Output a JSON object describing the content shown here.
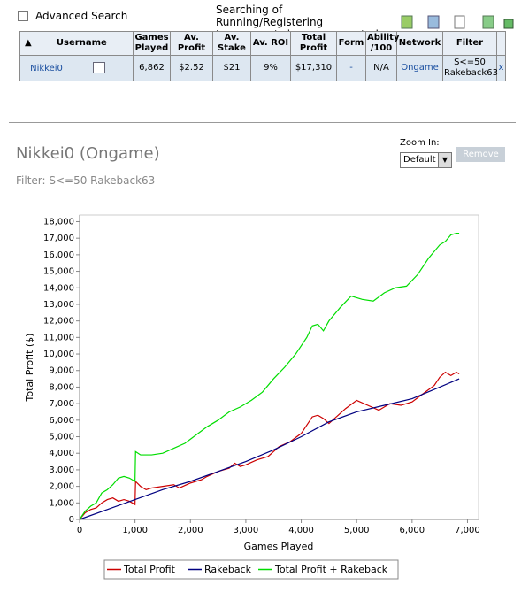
{
  "search": {
    "advanced_search": "Advanced Search",
    "notice": "Searching of Running/Registering tournaments is now supported",
    "notice_help": "(?)"
  },
  "table": {
    "headers": [
      "Username",
      "Games Played",
      "Av. Profit",
      "Av. Stake",
      "Av. ROI",
      "Total Profit",
      "Form",
      "Ability /100",
      "Network",
      "Filter"
    ],
    "rows": [
      [
        "Nikkei0",
        "6,862",
        "$2.52",
        "$21",
        "9%",
        "$17,310",
        "-",
        "N/A",
        "Ongame",
        "S<=50 Rakeback63",
        "x"
      ]
    ]
  },
  "player": {
    "title": "Nikkei0 (Ongame)",
    "filter": "Filter: S<=50 Rakeback63"
  },
  "zoom": {
    "label": "Zoom In:",
    "selected": "Default",
    "remove": "Remove"
  },
  "chart_data": {
    "type": "line",
    "xlabel": "Games Played",
    "ylabel": "Total Profit ($)",
    "xlim": [
      0,
      7200
    ],
    "ylim": [
      0,
      18400
    ],
    "xticks": [
      0,
      {
        "value": 1000,
        "label": "1,000"
      },
      {
        "value": 2000,
        "label": "2,000"
      },
      {
        "value": 3000,
        "label": "3,000"
      },
      {
        "value": 4000,
        "label": "4,000"
      },
      {
        "value": 5000,
        "label": "5,000"
      },
      {
        "value": 6000,
        "label": "6,000"
      },
      {
        "value": 7000,
        "label": "7,000"
      }
    ],
    "yticks": [
      0,
      {
        "value": 1000,
        "label": "1,000"
      },
      {
        "value": 2000,
        "label": "2,000"
      },
      {
        "value": 3000,
        "label": "3,000"
      },
      {
        "value": 4000,
        "label": "4,000"
      },
      {
        "value": 5000,
        "label": "5,000"
      },
      {
        "value": 6000,
        "label": "6,000"
      },
      {
        "value": 7000,
        "label": "7,000"
      },
      {
        "value": 8000,
        "label": "8,000"
      },
      {
        "value": 9000,
        "label": "9,000"
      },
      {
        "value": 10000,
        "label": "10,000"
      },
      {
        "value": 11000,
        "label": "11,000"
      },
      {
        "value": 12000,
        "label": "12,000"
      },
      {
        "value": 13000,
        "label": "13,000"
      },
      {
        "value": 14000,
        "label": "14,000"
      },
      {
        "value": 15000,
        "label": "15,000"
      },
      {
        "value": 16000,
        "label": "16,000"
      },
      {
        "value": 17000,
        "label": "17,000"
      },
      {
        "value": 18000,
        "label": "18,000"
      }
    ],
    "series": [
      {
        "name": "Total Profit",
        "color": "#cc0000",
        "x": [
          0,
          100,
          200,
          300,
          400,
          500,
          600,
          700,
          800,
          900,
          1000,
          1010,
          1100,
          1200,
          1300,
          1500,
          1700,
          1800,
          2000,
          2200,
          2300,
          2500,
          2700,
          2800,
          2900,
          3000,
          3200,
          3400,
          3600,
          3800,
          4000,
          4200,
          4300,
          4400,
          4500,
          4600,
          4800,
          5000,
          5200,
          5400,
          5600,
          5800,
          6000,
          6200,
          6400,
          6500,
          6600,
          6700,
          6800,
          6850
        ],
        "values": [
          0,
          400,
          600,
          700,
          1000,
          1200,
          1300,
          1100,
          1200,
          1100,
          900,
          2300,
          2000,
          1800,
          1900,
          2000,
          2100,
          1900,
          2200,
          2400,
          2600,
          2900,
          3100,
          3400,
          3200,
          3300,
          3600,
          3800,
          4400,
          4700,
          5200,
          6200,
          6300,
          6100,
          5800,
          6100,
          6700,
          7200,
          6900,
          6600,
          7000,
          6900,
          7100,
          7600,
          8100,
          8600,
          8900,
          8700,
          8900,
          8800
        ]
      },
      {
        "name": "Rakeback",
        "color": "#000080",
        "x": [
          0,
          500,
          1000,
          1500,
          2000,
          2500,
          3000,
          3500,
          4000,
          4500,
          5000,
          5500,
          6000,
          6500,
          6850
        ],
        "values": [
          0,
          600,
          1200,
          1800,
          2300,
          2900,
          3500,
          4200,
          5000,
          5900,
          6500,
          6900,
          7300,
          8000,
          8500
        ]
      },
      {
        "name": "Total Profit + Rakeback",
        "color": "#00dd00",
        "x": [
          0,
          100,
          200,
          300,
          400,
          500,
          600,
          700,
          800,
          900,
          1000,
          1010,
          1100,
          1300,
          1500,
          1700,
          1900,
          2100,
          2300,
          2500,
          2700,
          2900,
          3100,
          3300,
          3500,
          3700,
          3900,
          4100,
          4200,
          4300,
          4400,
          4500,
          4700,
          4900,
          5100,
          5300,
          5500,
          5700,
          5900,
          6100,
          6300,
          6500,
          6600,
          6700,
          6800,
          6850
        ],
        "values": [
          0,
          500,
          800,
          1000,
          1600,
          1800,
          2100,
          2500,
          2600,
          2500,
          2300,
          4100,
          3900,
          3900,
          4000,
          4300,
          4600,
          5100,
          5600,
          6000,
          6500,
          6800,
          7200,
          7700,
          8500,
          9200,
          10000,
          11000,
          11700,
          11800,
          11400,
          12000,
          12800,
          13500,
          13300,
          13200,
          13700,
          14000,
          14100,
          14800,
          15800,
          16600,
          16800,
          17200,
          17300,
          17300
        ]
      }
    ]
  }
}
